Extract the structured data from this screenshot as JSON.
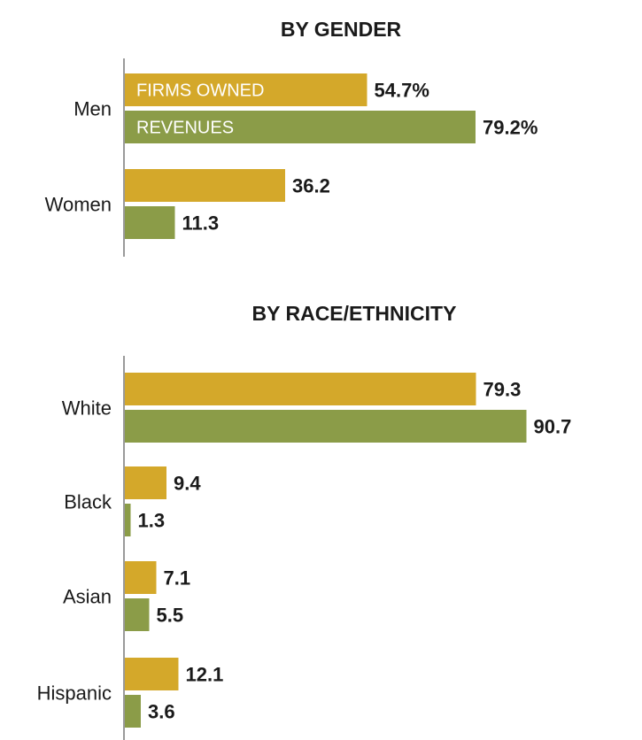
{
  "chart_data": [
    {
      "type": "bar",
      "orientation": "horizontal",
      "title": "BY GENDER",
      "categories": [
        "Men",
        "Women"
      ],
      "series": [
        {
          "name": "FIRMS OWNED",
          "color": "#d4a82a",
          "values": [
            54.7,
            36.2
          ],
          "labels": [
            "54.7%",
            "36.2"
          ]
        },
        {
          "name": "REVENUES",
          "color": "#8b9c48",
          "values": [
            79.2,
            11.3
          ],
          "labels": [
            "79.2%",
            "11.3"
          ]
        }
      ],
      "xlim": [
        0,
        100
      ],
      "grid": false,
      "legend": "inside-bars"
    },
    {
      "type": "bar",
      "orientation": "horizontal",
      "title": "BY RACE/ETHNICITY",
      "categories": [
        "White",
        "Black",
        "Asian",
        "Hispanic"
      ],
      "series": [
        {
          "name": "FIRMS OWNED",
          "color": "#d4a82a",
          "values": [
            79.3,
            9.4,
            7.1,
            12.1
          ],
          "labels": [
            "79.3",
            "9.4",
            "7.1",
            "12.1"
          ]
        },
        {
          "name": "REVENUES",
          "color": "#8b9c48",
          "values": [
            90.7,
            1.3,
            5.5,
            3.6
          ],
          "labels": [
            "90.7",
            "1.3",
            "5.5",
            "3.6"
          ]
        }
      ],
      "xlim": [
        0,
        100
      ],
      "grid": false,
      "legend": "none"
    }
  ]
}
